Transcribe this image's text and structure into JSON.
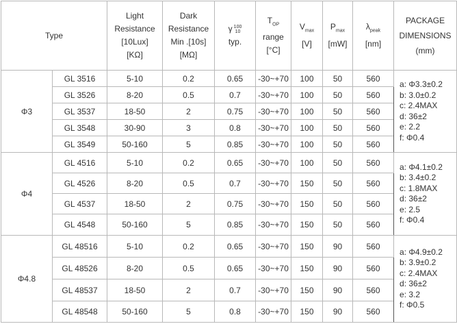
{
  "header": {
    "type": "Type",
    "light_resistance": [
      "Light",
      "Resistance",
      "[10Lux]",
      "[KΩ]"
    ],
    "dark_resistance": [
      "Dark",
      "Resistance",
      "Min .[10s]",
      "[MΩ]"
    ],
    "gamma": {
      "symbol": "γ",
      "sup": "100",
      "sub": "10",
      "unit": "typ."
    },
    "top": {
      "symbol": "T",
      "sub": "OP",
      "line2": "range",
      "unit": "[°C]"
    },
    "vmax": {
      "symbol": "V",
      "sub": "max",
      "unit": "[V]"
    },
    "pmax": {
      "symbol": "P",
      "sub": "max",
      "unit": "[mW]"
    },
    "lpeak": {
      "symbol": "λ",
      "sub": "peak",
      "unit": "[nm]"
    },
    "package": [
      "PACKAGE",
      "DIMENSIONS",
      "(mm)"
    ]
  },
  "groups": [
    {
      "label": "Φ3",
      "rows": [
        [
          "GL 3516",
          "5-10",
          "0.2",
          "0.65",
          "-30~+70",
          "100",
          "50",
          "560"
        ],
        [
          "GL 3526",
          "8-20",
          "0.5",
          "0.7",
          "-30~+70",
          "100",
          "50",
          "560"
        ],
        [
          "GL 3537",
          "18-50",
          "2",
          "0.75",
          "-30~+70",
          "100",
          "50",
          "560"
        ],
        [
          "GL 3548",
          "30-90",
          "3",
          "0.8",
          "-30~+70",
          "100",
          "50",
          "560"
        ],
        [
          "GL 3549",
          "50-160",
          "5",
          "0.85",
          "-30~+70",
          "100",
          "50",
          "560"
        ]
      ],
      "package": [
        "a: Φ3.3±0.2",
        "b: 3.0±0.2",
        "c: 2.4MAX",
        "d: 36±2",
        "e: 2.2",
        "f: Φ0.4"
      ]
    },
    {
      "label": "Φ4",
      "rows": [
        [
          "GL 4516",
          "5-10",
          "0.2",
          "0.65",
          "-30~+70",
          "100",
          "50",
          "560"
        ],
        [
          "GL 4526",
          "8-20",
          "0.5",
          "0.7",
          "-30~+70",
          "150",
          "50",
          "560"
        ],
        [
          "GL 4537",
          "18-50",
          "2",
          "0.75",
          "-30~+70",
          "150",
          "50",
          "560"
        ],
        [
          "GL 4548",
          "50-160",
          "5",
          "0.85",
          "-30~+70",
          "150",
          "50",
          "560"
        ]
      ],
      "package": [
        "a: Φ4.1±0.2",
        "b: 3.4±0.2",
        "c: 1.8MAX",
        "d: 36±2",
        "e: 2.5",
        "f: Φ0.4"
      ]
    },
    {
      "label": "Φ4.8",
      "rows": [
        [
          "GL 48516",
          "5-10",
          "0.2",
          "0.65",
          "-30~+70",
          "150",
          "90",
          "560"
        ],
        [
          "GL 48526",
          "8-20",
          "0.5",
          "0.65",
          "-30~+70",
          "150",
          "90",
          "560"
        ],
        [
          "GL 48537",
          "18-50",
          "2",
          "0.7",
          "-30~+70",
          "150",
          "90",
          "560"
        ],
        [
          "GL 48548",
          "50-160",
          "5",
          "0.8",
          "-30~+70",
          "150",
          "90",
          "560"
        ]
      ],
      "package": [
        "a: Φ4.9±0.2",
        "b: 3.9±0.2",
        "c: 2.4MAX",
        "d: 36±2",
        "e: 3.2",
        "f: Φ0.5"
      ]
    }
  ]
}
